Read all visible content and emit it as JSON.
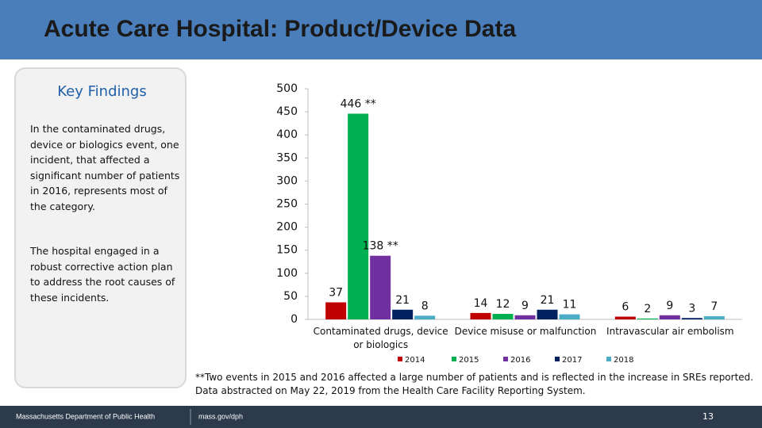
{
  "header": {
    "title": "Acute Care Hospital: Product/Device Data"
  },
  "sidebar": {
    "heading": "Key Findings",
    "paragraphs": [
      "In the contaminated drugs, device or biologics event, one incident, that affected a significant number of patients in 2016, represents most of the category.",
      "The hospital engaged in a robust corrective action plan to address the root causes of these incidents."
    ]
  },
  "chart_data": {
    "type": "bar",
    "categories": [
      "Contaminated drugs, device or biologics",
      "Device misuse or malfunction",
      "Intravascular air embolism"
    ],
    "series": [
      {
        "name": "2014",
        "color": "#c00000",
        "values": [
          37,
          14,
          6
        ]
      },
      {
        "name": "2015",
        "color": "#00b050",
        "values": [
          446,
          12,
          2
        ],
        "value_labels": [
          "446 **",
          "12",
          "2"
        ]
      },
      {
        "name": "2016",
        "color": "#7030a0",
        "values": [
          138,
          9,
          9
        ],
        "value_labels": [
          "138 **",
          "9",
          "9"
        ]
      },
      {
        "name": "2017",
        "color": "#002060",
        "values": [
          21,
          21,
          3
        ]
      },
      {
        "name": "2018",
        "color": "#4bacc6",
        "values": [
          8,
          11,
          7
        ]
      }
    ],
    "ylim": [
      0,
      500
    ],
    "yticks": [
      0,
      50,
      100,
      150,
      200,
      250,
      300,
      350,
      400,
      450,
      500
    ],
    "grid": false,
    "legend": "bottom"
  },
  "notes": [
    "**Two events in 2015 and 2016 affected a large number of patients and is reflected in the increase in SREs reported.",
    "Data abstracted on May 22, 2019 from the Health Care Facility Reporting System."
  ],
  "footer": {
    "organization": "Massachusetts Department of Public Health",
    "url": "mass.gov/dph",
    "page": "13"
  }
}
